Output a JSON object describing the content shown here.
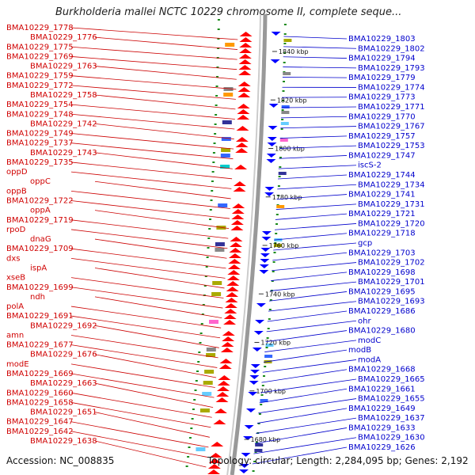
{
  "title": "Burkholderia mallei NCTC 10229 chromosome II, complete seque...",
  "footer": {
    "accession": "Accession: NC_008835",
    "topology": "Topology: circular; Length: 2,284,095 bp; Genes: 2,192"
  },
  "colors": {
    "forward": "#ff0000",
    "reverse": "#0000ff",
    "left_label": "#cc0000",
    "right_label": "#0000cc",
    "backbone": "#888888",
    "gc_tick": "#1a8a1a"
  },
  "kbp_ticks": [
    "1840 kbp",
    "1820 kbp",
    "1800 kbp",
    "1780 kbp",
    "1760 kbp",
    "1740 kbp",
    "1720 kbp",
    "1700 kbp",
    "1680 kbp"
  ],
  "left_labels": [
    "BMA10229_1778",
    "BMA10229_1776",
    "BMA10229_1775",
    "BMA10229_1769",
    "BMA10229_1763",
    "BMA10229_1759",
    "BMA10229_1772",
    "BMA10229_1758",
    "BMA10229_1754",
    "BMA10229_1748",
    "BMA10229_1742",
    "BMA10229_1749",
    "BMA10229_1737",
    "BMA10229_1743",
    "BMA10229_1735",
    "oppD",
    "oppC",
    "oppB",
    "BMA10229_1722",
    "oppA",
    "BMA10229_1719",
    "rpoD",
    "dnaG",
    "BMA10229_1709",
    "dxs",
    "ispA",
    "xseB",
    "BMA10229_1699",
    "ndh",
    "polA",
    "BMA10229_1691",
    "BMA10229_1692",
    "amn",
    "BMA10229_1677",
    "BMA10229_1676",
    "modE",
    "BMA10229_1669",
    "BMA10229_1663",
    "BMA10229_1660",
    "BMA10229_1658",
    "BMA10229_1651",
    "BMA10229_1647",
    "BMA10229_1642",
    "BMA10229_1638"
  ],
  "right_labels": [
    "BMA10229_1803",
    "BMA10229_1802",
    "BMA10229_1794",
    "BMA10229_1793",
    "BMA10229_1779",
    "BMA10229_1774",
    "BMA10229_1773",
    "BMA10229_1771",
    "BMA10229_1770",
    "BMA10229_1767",
    "BMA10229_1757",
    "BMA10229_1753",
    "BMA10229_1747",
    "iscS-2",
    "BMA10229_1744",
    "BMA10229_1734",
    "BMA10229_1741",
    "BMA10229_1731",
    "BMA10229_1721",
    "BMA10229_1720",
    "BMA10229_1718",
    "gcp",
    "BMA10229_1703",
    "BMA10229_1702",
    "BMA10229_1698",
    "BMA10229_1701",
    "BMA10229_1695",
    "BMA10229_1693",
    "BMA10229_1686",
    "ohr",
    "BMA10229_1680",
    "modC",
    "modB",
    "modA",
    "BMA10229_1668",
    "BMA10229_1665",
    "BMA10229_1661",
    "BMA10229_1655",
    "BMA10229_1649",
    "BMA10229_1637",
    "BMA10229_1633",
    "BMA10229_1630",
    "BMA10229_1626"
  ]
}
